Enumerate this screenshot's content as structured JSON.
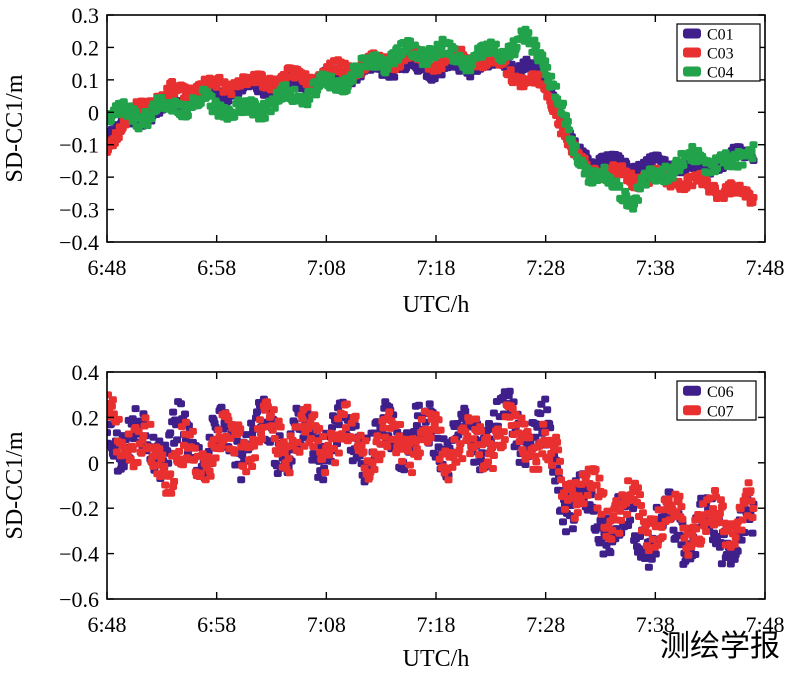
{
  "watermark": "测绘学报",
  "colors": {
    "C01": "#3f1f8a",
    "C03": "#e83030",
    "C04": "#22a24a",
    "C06": "#3f1f8a",
    "C07": "#e83030"
  },
  "chart_data": [
    {
      "type": "scatter",
      "title": "",
      "xlabel": "UTC/h",
      "ylabel": "SD-CC1/m",
      "xticks": [
        "6:48",
        "6:58",
        "7:08",
        "7:18",
        "7:28",
        "7:38",
        "7:48"
      ],
      "xlim": [
        0,
        60
      ],
      "ylim": [
        -0.4,
        0.3
      ],
      "yticks": [
        0.3,
        0.2,
        0.1,
        0,
        -0.1,
        -0.2,
        -0.3,
        -0.4
      ],
      "ytick_labels": [
        "0.3",
        "0.2",
        "0.1",
        "0",
        "−0.1",
        "−0.2",
        "−0.3",
        "−0.4"
      ],
      "legend_position": "top-right",
      "series": [
        {
          "name": "C01",
          "seed": 11,
          "spread": 0.018,
          "x": [
            0,
            3,
            6,
            9,
            12,
            15,
            18,
            21,
            24,
            27,
            30,
            33,
            36,
            38,
            40,
            41,
            42,
            43,
            45,
            48,
            51,
            54,
            57,
            59
          ],
          "y": [
            -0.06,
            -0.02,
            0.03,
            0.05,
            0.07,
            0.08,
            0.09,
            0.11,
            0.13,
            0.14,
            0.13,
            0.14,
            0.15,
            0.14,
            0.12,
            0.02,
            -0.07,
            -0.13,
            -0.15,
            -0.17,
            -0.16,
            -0.18,
            -0.14,
            -0.12
          ]
        },
        {
          "name": "C03",
          "seed": 23,
          "spread": 0.02,
          "x": [
            0,
            3,
            6,
            9,
            12,
            15,
            18,
            21,
            24,
            27,
            30,
            33,
            36,
            38,
            40,
            41,
            42,
            43,
            45,
            48,
            51,
            54,
            57,
            59
          ],
          "y": [
            -0.1,
            0.02,
            0.06,
            0.08,
            0.09,
            0.1,
            0.11,
            0.13,
            0.15,
            0.17,
            0.16,
            0.17,
            0.15,
            0.1,
            0.08,
            0.0,
            -0.09,
            -0.16,
            -0.18,
            -0.2,
            -0.21,
            -0.22,
            -0.24,
            -0.27
          ]
        },
        {
          "name": "C04",
          "seed": 37,
          "spread": 0.025,
          "x": [
            0,
            3,
            6,
            9,
            12,
            15,
            18,
            21,
            24,
            27,
            30,
            33,
            36,
            38,
            40,
            41,
            42,
            43,
            45,
            48,
            51,
            54,
            57,
            59
          ],
          "y": [
            0.0,
            -0.01,
            0.02,
            0.03,
            0.0,
            0.03,
            0.06,
            0.09,
            0.15,
            0.18,
            0.19,
            0.16,
            0.19,
            0.22,
            0.16,
            0.06,
            -0.06,
            -0.15,
            -0.2,
            -0.26,
            -0.17,
            -0.14,
            -0.17,
            -0.1
          ]
        }
      ]
    },
    {
      "type": "scatter",
      "title": "",
      "xlabel": "UTC/h",
      "ylabel": "SD-CC1/m",
      "xticks": [
        "6:48",
        "6:58",
        "7:08",
        "7:18",
        "7:28",
        "7:38",
        "7:48"
      ],
      "xlim": [
        0,
        60
      ],
      "ylim": [
        -0.6,
        0.4
      ],
      "yticks": [
        0.4,
        0.2,
        0,
        -0.2,
        -0.4,
        -0.6
      ],
      "ytick_labels": [
        "0.4",
        "0.2",
        "0",
        "−0.2",
        "−0.4",
        "−0.6"
      ],
      "legend_position": "top-right",
      "series": [
        {
          "name": "C06",
          "seed": 53,
          "spread": 0.1,
          "x": [
            0,
            3,
            6,
            9,
            12,
            15,
            18,
            21,
            24,
            27,
            30,
            33,
            36,
            38,
            40,
            42,
            45,
            48,
            51,
            54,
            57,
            59
          ],
          "y": [
            0.15,
            0.1,
            0.1,
            0.08,
            0.1,
            0.12,
            0.08,
            0.12,
            0.08,
            0.14,
            0.12,
            0.08,
            0.18,
            0.14,
            0.1,
            -0.15,
            -0.25,
            -0.28,
            -0.3,
            -0.28,
            -0.32,
            -0.33
          ]
        },
        {
          "name": "C07",
          "seed": 71,
          "spread": 0.09,
          "x": [
            0,
            3,
            6,
            9,
            12,
            15,
            18,
            21,
            24,
            27,
            30,
            33,
            36,
            38,
            40,
            42,
            45,
            48,
            51,
            54,
            57,
            59
          ],
          "y": [
            0.2,
            0.05,
            0.0,
            0.05,
            0.1,
            0.12,
            0.1,
            0.12,
            0.08,
            0.1,
            0.1,
            0.05,
            0.12,
            0.15,
            0.05,
            -0.1,
            -0.18,
            -0.22,
            -0.25,
            -0.27,
            -0.25,
            -0.22
          ]
        }
      ]
    }
  ]
}
